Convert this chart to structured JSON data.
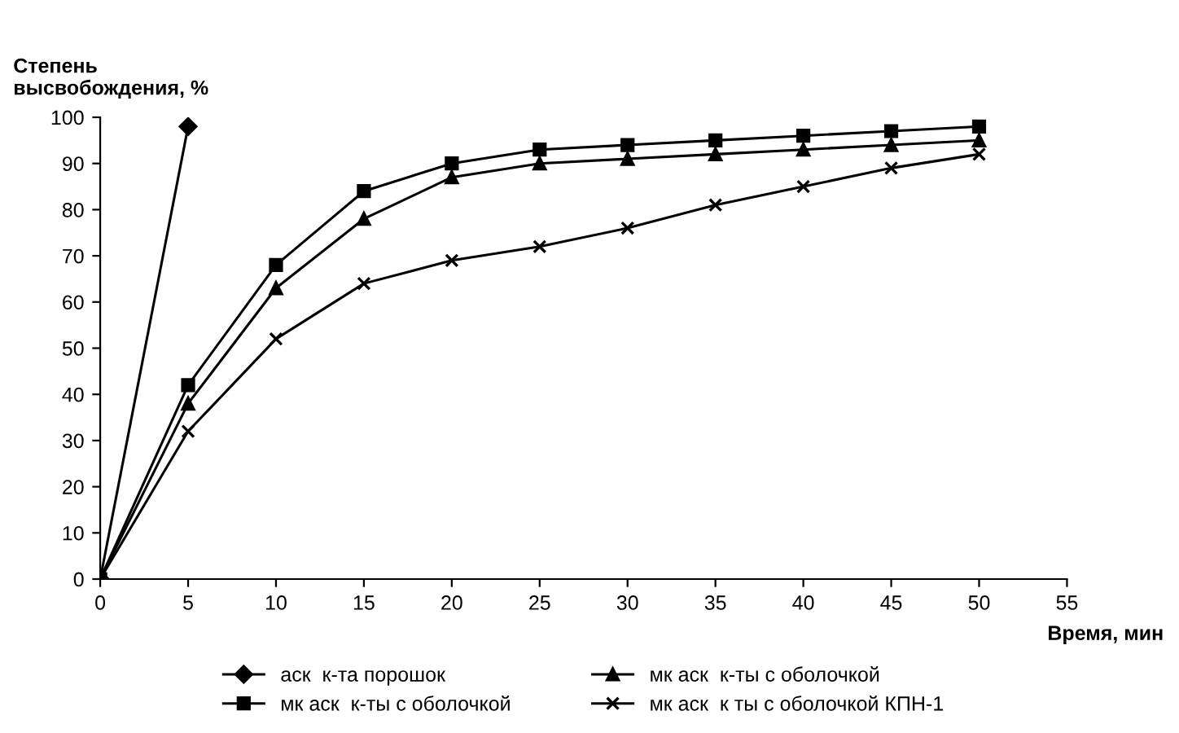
{
  "chart_data": {
    "type": "line",
    "ylabel": "Степень\nвысвобождения, %",
    "xlabel": "Время, мин",
    "xlim": [
      0,
      55
    ],
    "xticks": [
      0,
      5,
      10,
      15,
      20,
      25,
      30,
      35,
      40,
      45,
      50,
      55
    ],
    "ylim": [
      0,
      100
    ],
    "yticks": [
      0,
      10,
      20,
      30,
      40,
      50,
      60,
      70,
      80,
      90,
      100
    ],
    "grid": false,
    "legend": "bottom",
    "series": [
      {
        "name": "аск  к-та порошок",
        "color": "#000000",
        "marker": "diamond",
        "x": [
          0,
          5
        ],
        "values": [
          0,
          98
        ]
      },
      {
        "name": "мк аск  к-ты с оболочкой",
        "color": "#000000",
        "marker": "square",
        "x": [
          0,
          5,
          10,
          15,
          20,
          25,
          30,
          35,
          40,
          45,
          50
        ],
        "values": [
          0,
          42,
          68,
          84,
          90,
          93,
          94,
          95,
          96,
          97,
          98
        ]
      },
      {
        "name": "мк аск  к-ты с оболочкой",
        "color": "#000000",
        "marker": "triangle",
        "x": [
          0,
          5,
          10,
          15,
          20,
          25,
          30,
          35,
          40,
          45,
          50
        ],
        "values": [
          0,
          38,
          63,
          78,
          87,
          90,
          91,
          92,
          93,
          94,
          95
        ]
      },
      {
        "name": "мк аск  к ты с оболочкой КПН-1",
        "color": "#000000",
        "marker": "cross",
        "x": [
          0,
          5,
          10,
          15,
          20,
          25,
          30,
          35,
          40,
          45,
          50
        ],
        "values": [
          0,
          32,
          52,
          64,
          69,
          72,
          76,
          81,
          85,
          89,
          92
        ]
      }
    ]
  }
}
